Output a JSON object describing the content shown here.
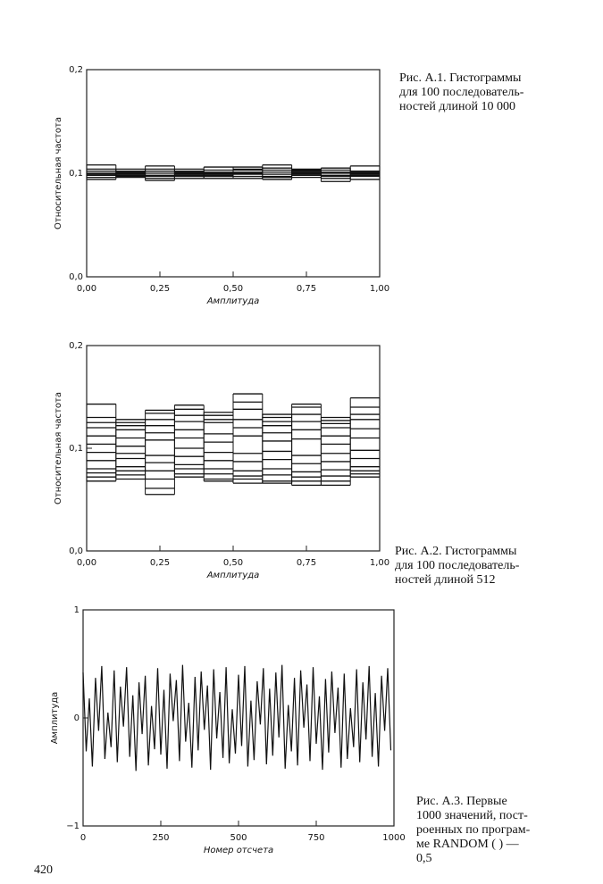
{
  "page_number": "420",
  "chart_data": [
    {
      "type": "histogram",
      "ylabel": "Относительная частота",
      "xlabel": "Амплитуда",
      "caption": [
        "Рис. А.1.  Гистограммы",
        "для 100 последователь-",
        "ностей длиной 10 000"
      ],
      "color": "#111111",
      "bins": [
        0,
        0.1,
        0.2,
        0.3,
        0.4,
        0.5,
        0.6,
        0.7,
        0.8,
        0.9,
        1.0
      ],
      "xlim": [
        0,
        1
      ],
      "ylim": [
        0,
        0.2
      ],
      "xticks": [
        {
          "value": 0,
          "label": "0,00"
        },
        {
          "value": 0.25,
          "label": "0,25"
        },
        {
          "value": 0.5,
          "label": "0,50"
        },
        {
          "value": 0.75,
          "label": "0,75"
        },
        {
          "value": 1,
          "label": "1,00"
        }
      ],
      "yticks": [
        {
          "value": 0,
          "label": "0,0"
        },
        {
          "value": 0.1,
          "label": "0,1"
        },
        {
          "value": 0.2,
          "label": "0,2"
        }
      ],
      "series": [
        {
          "values": [
            0.108,
            0.101,
            0.107,
            0.099,
            0.106,
            0.103,
            0.108,
            0.1,
            0.105,
            0.107
          ]
        },
        {
          "values": [
            0.098,
            0.104,
            0.093,
            0.101,
            0.097,
            0.104,
            0.094,
            0.101,
            0.092,
            0.098
          ]
        },
        {
          "values": [
            0.102,
            0.098,
            0.1,
            0.104,
            0.099,
            0.097,
            0.101,
            0.103,
            0.098,
            0.101
          ]
        },
        {
          "values": [
            0.096,
            0.102,
            0.098,
            0.095,
            0.103,
            0.099,
            0.097,
            0.096,
            0.101,
            0.094
          ]
        },
        {
          "values": [
            0.1,
            0.096,
            0.104,
            0.098,
            0.101,
            0.1,
            0.103,
            0.099,
            0.095,
            0.102
          ]
        },
        {
          "values": [
            0.094,
            0.1,
            0.097,
            0.102,
            0.095,
            0.106,
            0.099,
            0.104,
            0.1,
            0.097
          ]
        },
        {
          "values": [
            0.104,
            0.099,
            0.102,
            0.097,
            0.1,
            0.095,
            0.105,
            0.098,
            0.103,
            0.099
          ]
        },
        {
          "values": [
            0.099,
            0.097,
            0.095,
            0.1,
            0.098,
            0.101,
            0.096,
            0.102,
            0.097,
            0.1
          ]
        }
      ]
    },
    {
      "type": "histogram",
      "ylabel": "Относительная частота",
      "xlabel": "Амплитуда",
      "caption": [
        "Рис. А.2.  Гистограммы",
        "для 100 последователь-",
        "ностей длиной 512"
      ],
      "color": "#111111",
      "bins": [
        0,
        0.1,
        0.2,
        0.3,
        0.4,
        0.5,
        0.6,
        0.7,
        0.8,
        0.9,
        1.0
      ],
      "xlim": [
        0,
        1
      ],
      "ylim": [
        0,
        0.2
      ],
      "xticks": [
        {
          "value": 0,
          "label": "0,00"
        },
        {
          "value": 0.25,
          "label": "0,25"
        },
        {
          "value": 0.5,
          "label": "0,50"
        },
        {
          "value": 0.75,
          "label": "0,75"
        },
        {
          "value": 1,
          "label": "1,00"
        }
      ],
      "yticks": [
        {
          "value": 0,
          "label": "0,0"
        },
        {
          "value": 0.1,
          "label": "0,1"
        },
        {
          "value": 0.2,
          "label": "0,2"
        }
      ],
      "series": [
        {
          "values": [
            0.143,
            0.128,
            0.137,
            0.142,
            0.135,
            0.153,
            0.133,
            0.143,
            0.13,
            0.149
          ]
        },
        {
          "values": [
            0.068,
            0.07,
            0.055,
            0.072,
            0.068,
            0.066,
            0.066,
            0.064,
            0.064,
            0.072
          ]
        },
        {
          "values": [
            0.13,
            0.125,
            0.134,
            0.138,
            0.132,
            0.145,
            0.13,
            0.14,
            0.127,
            0.133
          ]
        },
        {
          "values": [
            0.072,
            0.074,
            0.061,
            0.075,
            0.07,
            0.07,
            0.068,
            0.068,
            0.068,
            0.075
          ]
        },
        {
          "values": [
            0.12,
            0.118,
            0.122,
            0.126,
            0.125,
            0.128,
            0.122,
            0.126,
            0.12,
            0.128
          ]
        },
        {
          "values": [
            0.08,
            0.082,
            0.078,
            0.084,
            0.08,
            0.078,
            0.08,
            0.077,
            0.079,
            0.082
          ]
        },
        {
          "values": [
            0.112,
            0.11,
            0.115,
            0.118,
            0.114,
            0.12,
            0.115,
            0.118,
            0.112,
            0.119
          ]
        },
        {
          "values": [
            0.088,
            0.09,
            0.086,
            0.092,
            0.088,
            0.087,
            0.089,
            0.085,
            0.087,
            0.09
          ]
        },
        {
          "values": [
            0.104,
            0.102,
            0.108,
            0.11,
            0.106,
            0.112,
            0.107,
            0.109,
            0.104,
            0.11
          ]
        },
        {
          "values": [
            0.096,
            0.095,
            0.093,
            0.1,
            0.096,
            0.095,
            0.097,
            0.093,
            0.095,
            0.098
          ]
        },
        {
          "values": [
            0.125,
            0.122,
            0.128,
            0.132,
            0.128,
            0.138,
            0.126,
            0.133,
            0.124,
            0.14
          ]
        },
        {
          "values": [
            0.076,
            0.078,
            0.07,
            0.08,
            0.075,
            0.073,
            0.074,
            0.072,
            0.073,
            0.078
          ]
        }
      ]
    },
    {
      "type": "line",
      "ylabel": "Амплитуда",
      "xlabel": "Номер отсчета",
      "caption": [
        "Рис.  А.3.  Первые",
        "1000 значений, пост-",
        "роенных по програм-",
        "ме RANDOM ( ) —",
        "0,5"
      ],
      "color": "#111111",
      "xlim": [
        0,
        1000
      ],
      "ylim": [
        -1,
        1
      ],
      "xticks": [
        0,
        250,
        500,
        750,
        1000
      ],
      "yticks": [
        {
          "value": -1,
          "label": "−1"
        },
        0,
        1
      ],
      "x": [
        0,
        10,
        20,
        30,
        40,
        50,
        60,
        70,
        80,
        90,
        100,
        110,
        120,
        130,
        140,
        150,
        160,
        170,
        180,
        190,
        200,
        210,
        220,
        230,
        240,
        250,
        260,
        270,
        280,
        290,
        300,
        310,
        320,
        330,
        340,
        350,
        360,
        370,
        380,
        390,
        400,
        410,
        420,
        430,
        440,
        450,
        460,
        470,
        480,
        490,
        500,
        510,
        520,
        530,
        540,
        550,
        560,
        570,
        580,
        590,
        600,
        610,
        620,
        630,
        640,
        650,
        660,
        670,
        680,
        690,
        700,
        710,
        720,
        730,
        740,
        750,
        760,
        770,
        780,
        790,
        800,
        810,
        820,
        830,
        840,
        850,
        860,
        870,
        880,
        890,
        900,
        910,
        920,
        930,
        940,
        950,
        960,
        970,
        980,
        990
      ],
      "values": [
        0.42,
        -0.31,
        0.18,
        -0.45,
        0.37,
        -0.12,
        0.48,
        -0.38,
        0.05,
        -0.27,
        0.44,
        -0.41,
        0.29,
        -0.08,
        0.47,
        -0.36,
        0.21,
        -0.49,
        0.33,
        -0.15,
        0.39,
        -0.44,
        0.11,
        -0.29,
        0.46,
        -0.34,
        0.26,
        -0.47,
        0.41,
        -0.03,
        0.35,
        -0.4,
        0.49,
        -0.22,
        0.14,
        -0.46,
        0.38,
        -0.3,
        0.43,
        -0.11,
        0.3,
        -0.48,
        0.45,
        -0.19,
        0.24,
        -0.37,
        0.47,
        -0.42,
        0.08,
        -0.33,
        0.4,
        -0.26,
        0.48,
        -0.45,
        0.16,
        -0.39,
        0.34,
        -0.06,
        0.46,
        -0.43,
        0.27,
        -0.35,
        0.42,
        -0.18,
        0.49,
        -0.47,
        0.12,
        -0.31,
        0.37,
        -0.44,
        0.44,
        -0.09,
        0.31,
        -0.4,
        0.47,
        -0.24,
        0.2,
        -0.48,
        0.36,
        -0.32,
        0.43,
        -0.14,
        0.28,
        -0.46,
        0.41,
        -0.38,
        0.09,
        -0.27,
        0.45,
        -0.41,
        0.33,
        -0.2,
        0.48,
        -0.36,
        0.23,
        -0.45,
        0.39,
        -0.12,
        0.46,
        -0.3
      ]
    }
  ]
}
